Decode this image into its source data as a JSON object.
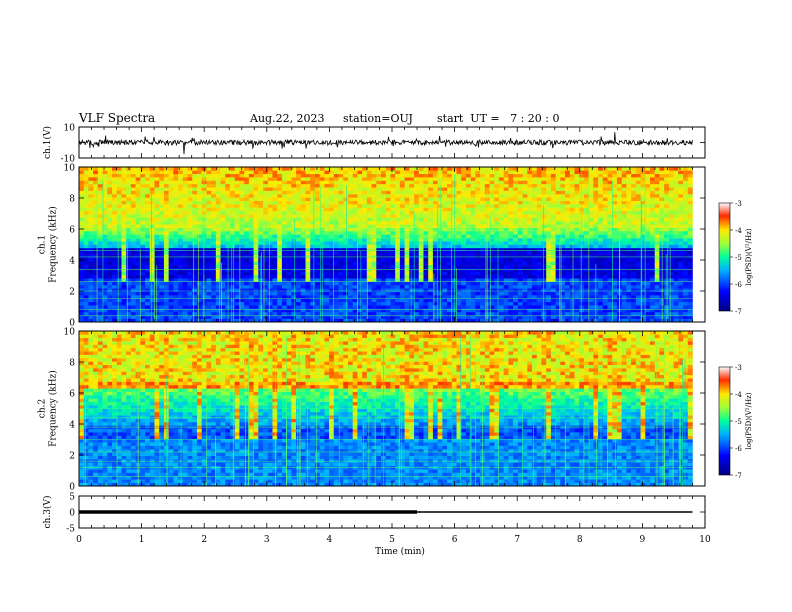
{
  "header": {
    "title": "VLF Spectra",
    "date": "Aug.22, 2023",
    "station": "station=OUJ",
    "start": "start  UT =   7 : 20 : 0"
  },
  "chart_data": [
    {
      "type": "line",
      "panel": "ch1-waveform",
      "ylabel": "ch.1(V)",
      "ylim": [
        -10,
        10
      ],
      "yticks": [
        "10",
        "-10"
      ],
      "xlim": [
        0,
        10
      ]
    },
    {
      "type": "heatmap",
      "panel": "ch1-spectrogram",
      "ylabel": "ch.1\nFrequency (kHz)",
      "ylim": [
        0,
        10
      ],
      "yticks": [
        "0",
        "2",
        "4",
        "6",
        "8",
        "10"
      ],
      "xlim": [
        0,
        10
      ],
      "data_end_min": 9.8,
      "colorbar": {
        "label": "log(PSD)(V²/Hz)",
        "range": [
          -7,
          -3
        ],
        "ticks": [
          "-3",
          "-4",
          "-5",
          "-6",
          "-7"
        ]
      }
    },
    {
      "type": "heatmap",
      "panel": "ch2-spectrogram",
      "ylabel": "ch.2\nFrequency (kHz)",
      "ylim": [
        0,
        10
      ],
      "yticks": [
        "0",
        "2",
        "4",
        "6",
        "8",
        "10"
      ],
      "xlim": [
        0,
        10
      ],
      "data_end_min": 9.8,
      "colorbar": {
        "label": "log(PSD)(V²/Hz)",
        "range": [
          -7,
          -3
        ],
        "ticks": [
          "-3",
          "-4",
          "-5",
          "-6",
          "-7"
        ]
      }
    },
    {
      "type": "line",
      "panel": "ch3-line",
      "ylabel": "ch.3(V)",
      "ylim": [
        -5,
        5
      ],
      "yticks": [
        "5",
        "0",
        "-5"
      ],
      "xlim": [
        0,
        10
      ],
      "series": [
        {
          "x": [
            0,
            9.8
          ],
          "y": [
            0,
            0
          ]
        }
      ]
    }
  ],
  "xaxis": {
    "label": "Time (min)",
    "ticks": [
      "0",
      "1",
      "2",
      "3",
      "4",
      "5",
      "6",
      "7",
      "8",
      "9",
      "10"
    ]
  }
}
